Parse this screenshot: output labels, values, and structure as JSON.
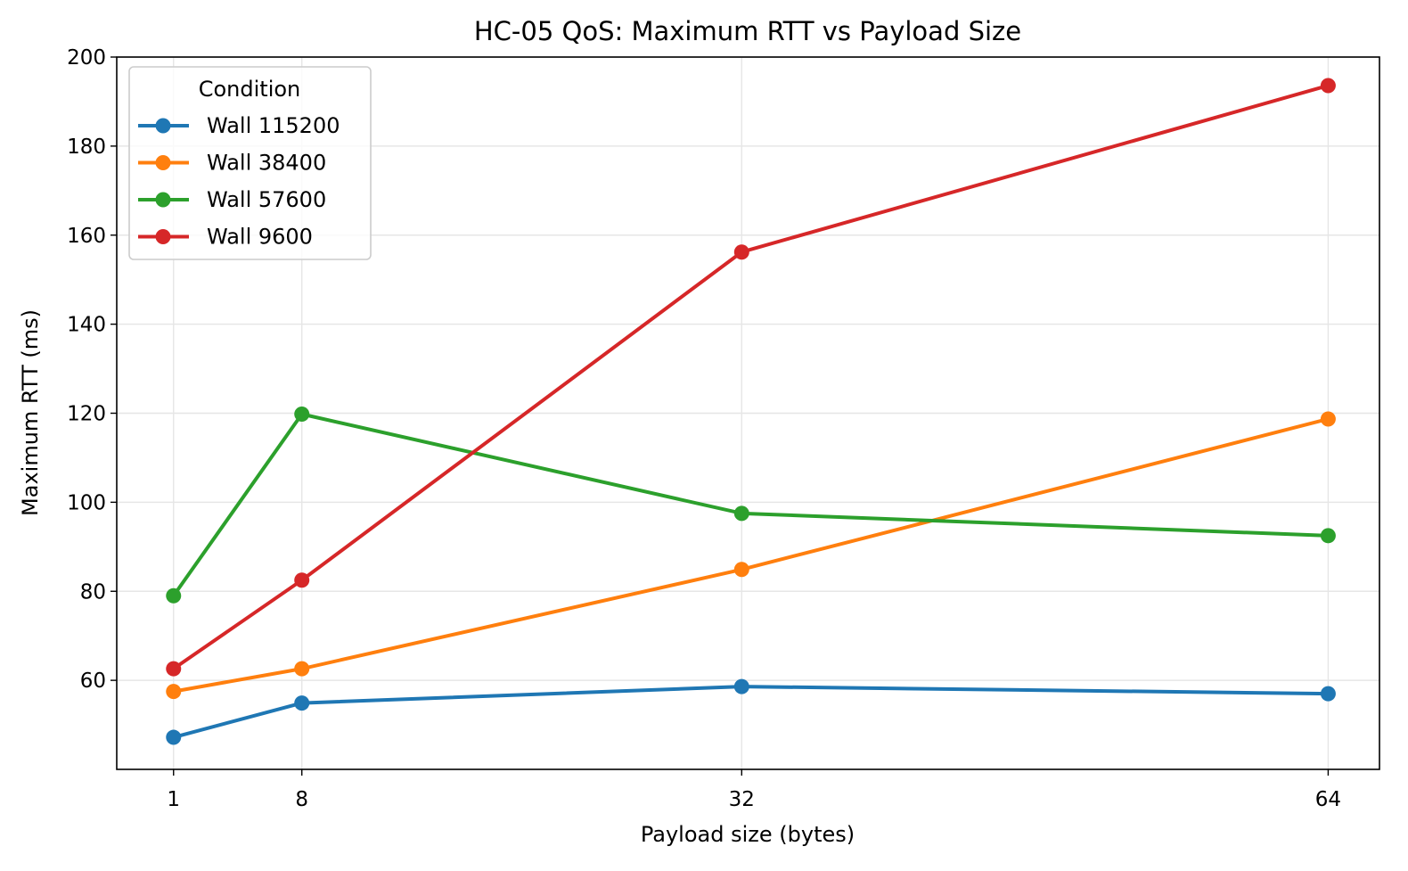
{
  "chart_data": {
    "type": "line",
    "title": "HC-05 QoS: Maximum RTT vs Payload Size",
    "xlabel": "Payload size (bytes)",
    "ylabel": "Maximum RTT (ms)",
    "x": [
      1,
      8,
      32,
      64
    ],
    "x_ticks": [
      "1",
      "8",
      "32",
      "64"
    ],
    "xlim": [
      -2.1,
      66.8
    ],
    "y_ticks": [
      "60",
      "80",
      "100",
      "120",
      "140",
      "160",
      "180",
      "200"
    ],
    "ylim": [
      40,
      200
    ],
    "grid": true,
    "legend": {
      "title": "Condition",
      "placement": "top-left"
    },
    "series": [
      {
        "name": "Wall 115200",
        "color": "#1f77b4",
        "values": [
          47.2,
          54.9,
          58.6,
          57.0
        ]
      },
      {
        "name": "Wall 38400",
        "color": "#ff7f0e",
        "values": [
          57.5,
          62.6,
          84.9,
          118.7
        ]
      },
      {
        "name": "Wall 57600",
        "color": "#2ca02c",
        "values": [
          79.0,
          119.8,
          97.5,
          92.5
        ]
      },
      {
        "name": "Wall 9600",
        "color": "#d62728",
        "values": [
          62.6,
          82.5,
          156.2,
          193.6
        ]
      }
    ]
  }
}
